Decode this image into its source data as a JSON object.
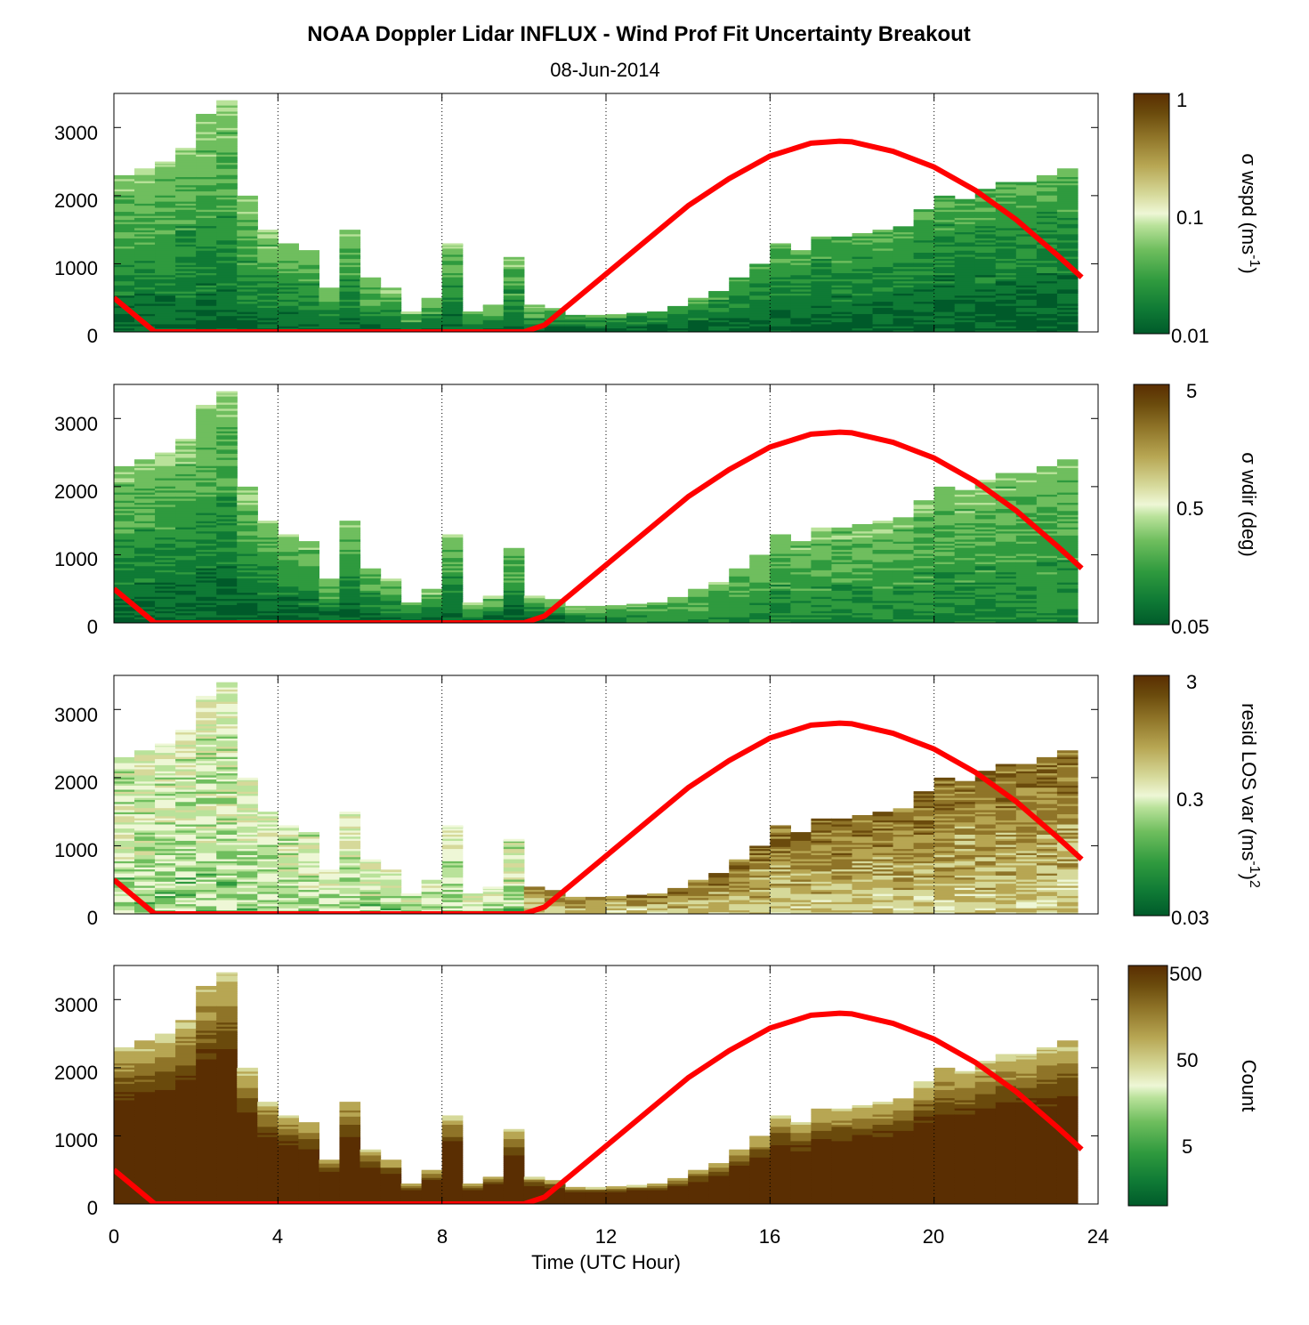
{
  "figure": {
    "title": "NOAA Doppler Lidar INFLUX - Wind Prof Fit Uncertainty Breakout",
    "subtitle": "08-Jun-2014"
  },
  "colormap": [
    "#005a2a",
    "#0f7a35",
    "#2f9a3e",
    "#6fbe5e",
    "#b9e29a",
    "#eef7d6",
    "#d6d99a",
    "#b7a653",
    "#8f7428",
    "#6a4a0c",
    "#5a2e02"
  ],
  "line_color": "#ff0000",
  "chart_data": [
    {
      "type": "heatmap",
      "panel": "sigma-wspd",
      "xlabel": "",
      "ylabel": "",
      "xlim": [
        0,
        24
      ],
      "ylim": [
        0,
        3500
      ],
      "yticks": [
        "0",
        "1000",
        "2000",
        "3000"
      ],
      "colorbar": {
        "label_base": "σ wspd (ms",
        "label_sup": "-1",
        "label_tail": ")",
        "scale": "log",
        "range": [
          0.01,
          1
        ],
        "ticks": [
          "0.01",
          "0.1",
          "1"
        ]
      },
      "grid": "vertical dotted at x ticks",
      "overlay_line": "mixing-height red curve"
    },
    {
      "type": "heatmap",
      "panel": "sigma-wdir",
      "xlim": [
        0,
        24
      ],
      "ylim": [
        0,
        3500
      ],
      "yticks": [
        "0",
        "1000",
        "2000",
        "3000"
      ],
      "colorbar": {
        "label": "σ wdir (deg)",
        "scale": "log",
        "range": [
          0.05,
          5
        ],
        "ticks": [
          "0.05",
          "0.5",
          "5"
        ]
      }
    },
    {
      "type": "heatmap",
      "panel": "resid-los-var",
      "xlim": [
        0,
        24
      ],
      "ylim": [
        0,
        3500
      ],
      "yticks": [
        "0",
        "1000",
        "2000",
        "3000"
      ],
      "colorbar": {
        "label_base": "resid LOS var (ms",
        "label_sup": "-1",
        "label_tail": ")",
        "label_sup2": "2",
        "scale": "log",
        "range": [
          0.03,
          3
        ],
        "ticks": [
          "0.03",
          "0.3",
          "3"
        ]
      }
    },
    {
      "type": "heatmap",
      "panel": "count",
      "xlabel": "Time (UTC Hour)",
      "xlim": [
        0,
        24
      ],
      "ylim": [
        0,
        3500
      ],
      "xticks": [
        "0",
        "4",
        "8",
        "12",
        "16",
        "20",
        "24"
      ],
      "yticks": [
        "0",
        "1000",
        "2000",
        "3000"
      ],
      "colorbar": {
        "label": "Count",
        "scale": "log",
        "ticks": [
          "5",
          "50",
          "500"
        ]
      }
    }
  ],
  "column_tops": {
    "hours": [
      0.25,
      0.75,
      1.25,
      1.75,
      2.25,
      2.75,
      3.25,
      3.75,
      4.25,
      4.75,
      5.25,
      5.75,
      6.25,
      6.75,
      7.25,
      7.75,
      8.25,
      8.75,
      9.25,
      9.75,
      10.25,
      10.75,
      11.25,
      11.75,
      12.25,
      12.75,
      13.25,
      13.75,
      14.25,
      14.75,
      15.25,
      15.75,
      16.25,
      16.75,
      17.25,
      17.75,
      18.25,
      18.75,
      19.25,
      19.75,
      20.25,
      20.75,
      21.25,
      21.75,
      22.25,
      22.75,
      23.25
    ],
    "heights_m": [
      2300,
      2400,
      2500,
      2700,
      3200,
      3400,
      2000,
      1500,
      1300,
      1200,
      650,
      1500,
      800,
      650,
      300,
      500,
      1300,
      300,
      400,
      1100,
      400,
      350,
      250,
      250,
      260,
      280,
      300,
      380,
      500,
      600,
      800,
      1000,
      1300,
      1200,
      1400,
      1400,
      1450,
      1500,
      1550,
      1800,
      2000,
      1950,
      2100,
      2200,
      2200,
      2300,
      2400
    ]
  },
  "mixing_height_curve": {
    "hours": [
      0,
      1,
      2,
      3,
      4,
      5,
      6,
      7,
      8,
      9,
      10,
      10.5,
      11,
      12,
      13,
      14,
      15,
      16,
      17,
      17.7,
      18,
      19,
      20,
      21,
      22,
      23,
      23.6
    ],
    "height_m": [
      500,
      0,
      0,
      0,
      0,
      0,
      0,
      0,
      0,
      0,
      0,
      100,
      350,
      850,
      1350,
      1850,
      2250,
      2580,
      2770,
      2800,
      2790,
      2650,
      2420,
      2080,
      1650,
      1130,
      800
    ]
  }
}
